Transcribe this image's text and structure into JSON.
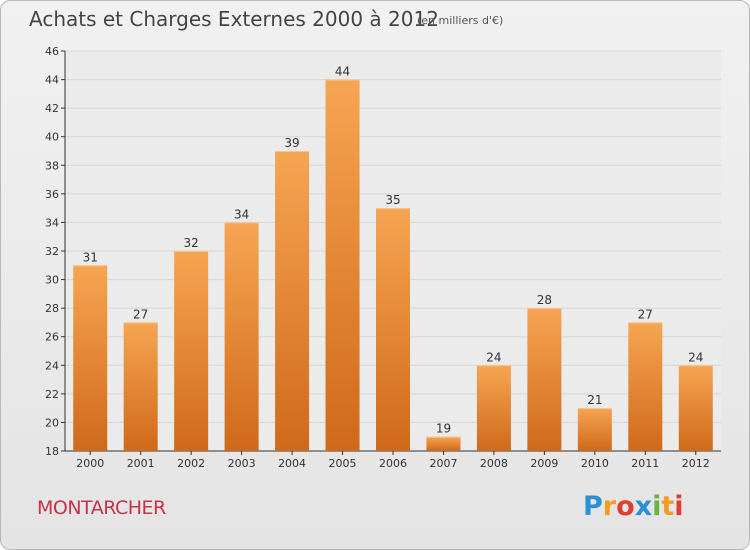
{
  "chart_data": {
    "type": "bar",
    "title": "Achats et Charges Externes 2000 à 2012",
    "subtitle": "(en milliers d'€)",
    "categories": [
      "2000",
      "2001",
      "2002",
      "2003",
      "2004",
      "2005",
      "2006",
      "2007",
      "2008",
      "2009",
      "2010",
      "2011",
      "2012"
    ],
    "values": [
      31,
      27,
      32,
      34,
      39,
      44,
      35,
      19,
      24,
      28,
      21,
      27,
      24
    ],
    "ylim": [
      18,
      46
    ],
    "yticks": [
      18,
      20,
      22,
      24,
      26,
      28,
      30,
      32,
      34,
      36,
      38,
      40,
      42,
      44,
      46
    ],
    "grid": true,
    "bar_color": "#f0932f",
    "xlabel": "",
    "ylabel": ""
  },
  "commune": "MONTARCHER",
  "logo": {
    "text": "Proxiti",
    "letters": [
      "P",
      "r",
      "o",
      "x",
      "i",
      "t",
      "i"
    ],
    "colors": [
      "#2a8fd4",
      "#f39c1f",
      "#e03c31",
      "#2a8fd4",
      "#6cb33f",
      "#f39c1f",
      "#e03c31"
    ]
  },
  "colors": {
    "title_text": "#444444",
    "commune_text": "#c8324a",
    "grid": "#d6d6d6",
    "axis": "#333333"
  }
}
